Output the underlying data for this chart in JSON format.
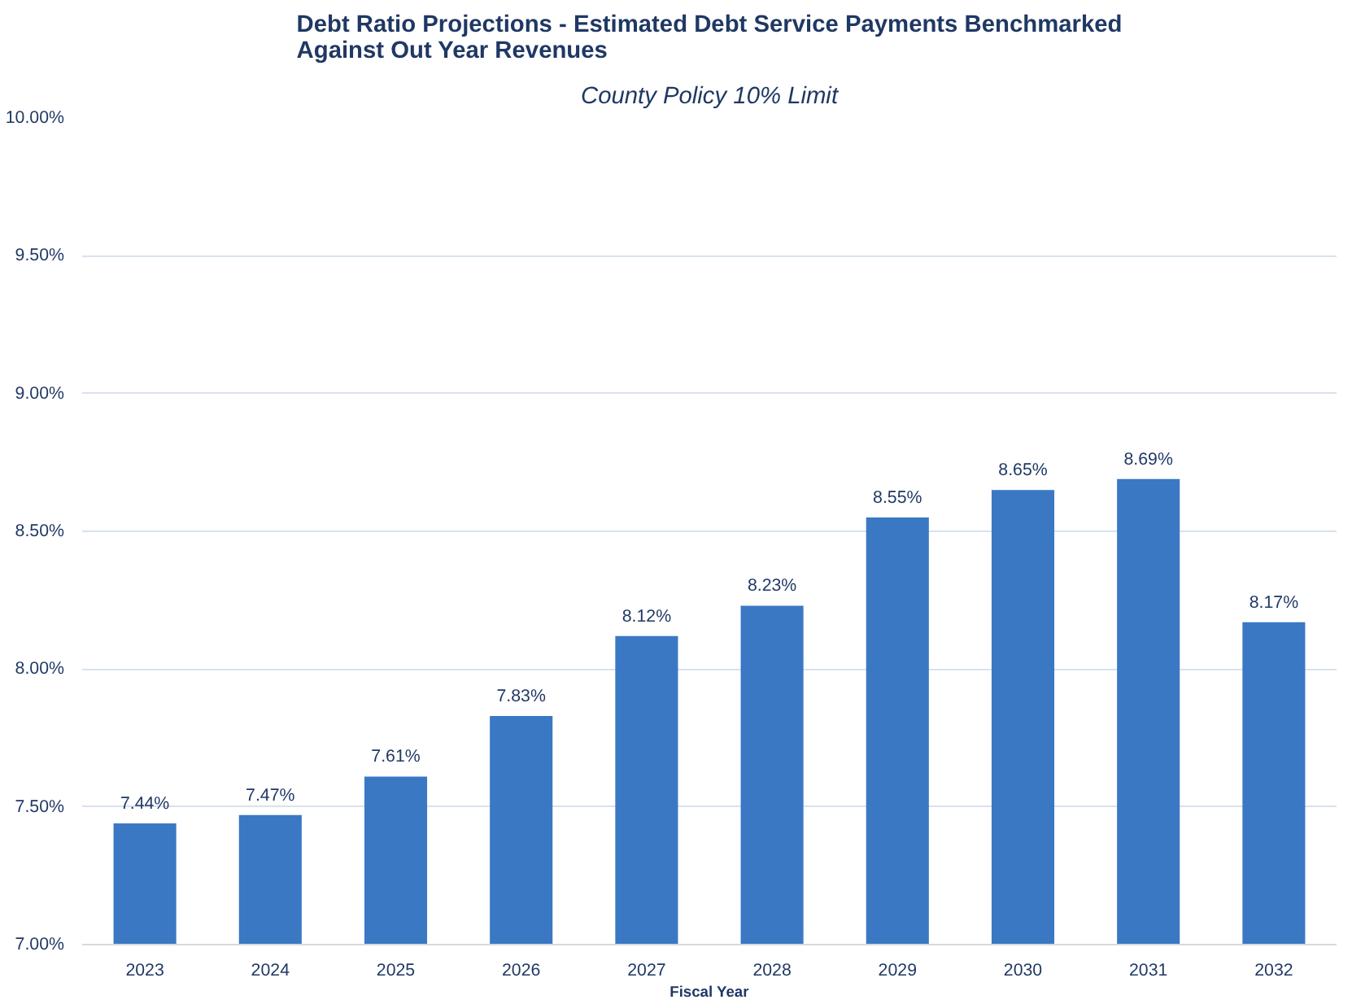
{
  "chart_data": {
    "type": "bar",
    "title": "Debt Ratio Projections - Estimated Debt Service Payments Benchmarked\nAgainst Out Year Revenues",
    "subtitle": "County Policy 10% Limit",
    "xlabel": "Fiscal Year",
    "categories": [
      "2023",
      "2024",
      "2025",
      "2026",
      "2027",
      "2028",
      "2029",
      "2030",
      "2031",
      "2032"
    ],
    "values": [
      7.44,
      7.47,
      7.61,
      7.83,
      8.12,
      8.23,
      8.55,
      8.65,
      8.69,
      8.17
    ],
    "value_labels": [
      "7.44%",
      "7.47%",
      "7.61%",
      "7.83%",
      "8.12%",
      "8.23%",
      "8.55%",
      "8.65%",
      "8.69%",
      "8.17%"
    ],
    "color": "#3a78c4",
    "ylim": [
      7,
      10
    ],
    "yticks": [
      {
        "value": 7,
        "label": "7.00%"
      },
      {
        "value": 7.5,
        "label": "7.50%"
      },
      {
        "value": 8,
        "label": "8.00%"
      },
      {
        "value": 8.5,
        "label": "8.50%"
      },
      {
        "value": 9,
        "label": "9.00%"
      },
      {
        "value": 9.5,
        "label": "9.50%"
      },
      {
        "value": 10,
        "label": "10.00%"
      }
    ],
    "grid": "y"
  }
}
